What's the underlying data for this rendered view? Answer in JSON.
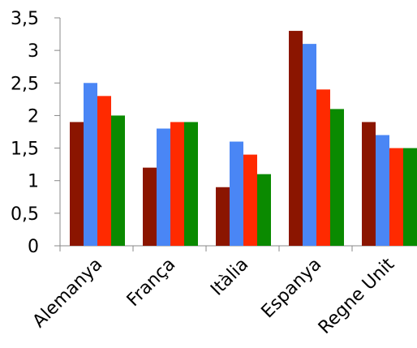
{
  "chart_data": {
    "type": "bar",
    "categories": [
      "Alemanya",
      "França",
      "Itàlia",
      "Espanya",
      "Regne Unit"
    ],
    "series": [
      {
        "values": [
          1.9,
          1.2,
          0.9,
          3.3,
          1.9
        ],
        "color": "#8B1500"
      },
      {
        "values": [
          2.5,
          1.8,
          1.6,
          3.1,
          1.7
        ],
        "color": "#4A86F5"
      },
      {
        "values": [
          2.3,
          1.9,
          1.4,
          2.4,
          1.5
        ],
        "color": "#FF2A00"
      },
      {
        "values": [
          2.0,
          1.9,
          1.1,
          2.1,
          1.5
        ],
        "color": "#0A8A00"
      }
    ],
    "yticks": [
      "0",
      "0,5",
      "1",
      "1,5",
      "2",
      "2,5",
      "3",
      "3,5"
    ],
    "ylim": [
      0,
      3.5
    ],
    "grid": false,
    "legend": "none",
    "title": "",
    "xlabel": "",
    "ylabel": ""
  }
}
